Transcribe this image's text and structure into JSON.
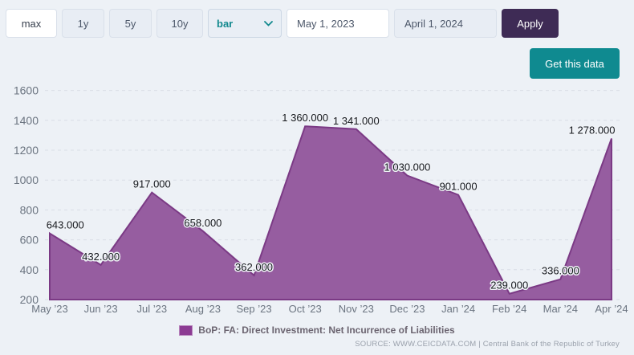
{
  "toolbar": {
    "range_buttons": [
      {
        "label": "max",
        "active": true
      },
      {
        "label": "1y",
        "active": false
      },
      {
        "label": "5y",
        "active": false
      },
      {
        "label": "10y",
        "active": false
      }
    ],
    "chart_type_select": {
      "value": "bar"
    },
    "start_date": "May 1, 2023",
    "end_date": "April 1, 2024",
    "apply_label": "Apply",
    "get_data_label": "Get this data"
  },
  "colors": {
    "page_bg": "#edf1f6",
    "accent_teal": "#0f8a90",
    "apply_purple": "#3e2b55",
    "area_fill": "#965da0",
    "area_stroke": "#7b3a85",
    "legend_marker": "#8c3b93",
    "grid": "#d9dee6",
    "axis_text": "#6b7480",
    "data_label_text": "#15181d"
  },
  "chart_data": {
    "type": "area",
    "title": "",
    "categories": [
      "May ’23",
      "Jun ’23",
      "Jul ’23",
      "Aug ’23",
      "Sep ’23",
      "Oct ’23",
      "Nov ’23",
      "Dec ’23",
      "Jan ’24",
      "Feb ’24",
      "Mar ’24",
      "Apr ’24"
    ],
    "values": [
      643,
      432,
      917,
      658,
      362,
      1360,
      1341,
      1030,
      901,
      239,
      336,
      1278
    ],
    "labels": [
      "643.000",
      "432.000",
      "917.000",
      "658.000",
      "362.000",
      "1 360.000",
      "1 341.000",
      "1 030.000",
      "901.000",
      "239.000",
      "336.000",
      "1 278.000"
    ],
    "series_name": "BoP: FA: Direct Investment: Net Incurrence of Liabilities",
    "xlabel": "",
    "ylabel": "",
    "ylim": [
      200,
      1600
    ],
    "yticks": [
      200,
      400,
      600,
      800,
      1000,
      1200,
      1400,
      1600
    ],
    "grid": true,
    "legend_position": "bottom",
    "source": "SOURCE: WWW.CEICDATA.COM | Central Bank of the Republic of Turkey"
  }
}
